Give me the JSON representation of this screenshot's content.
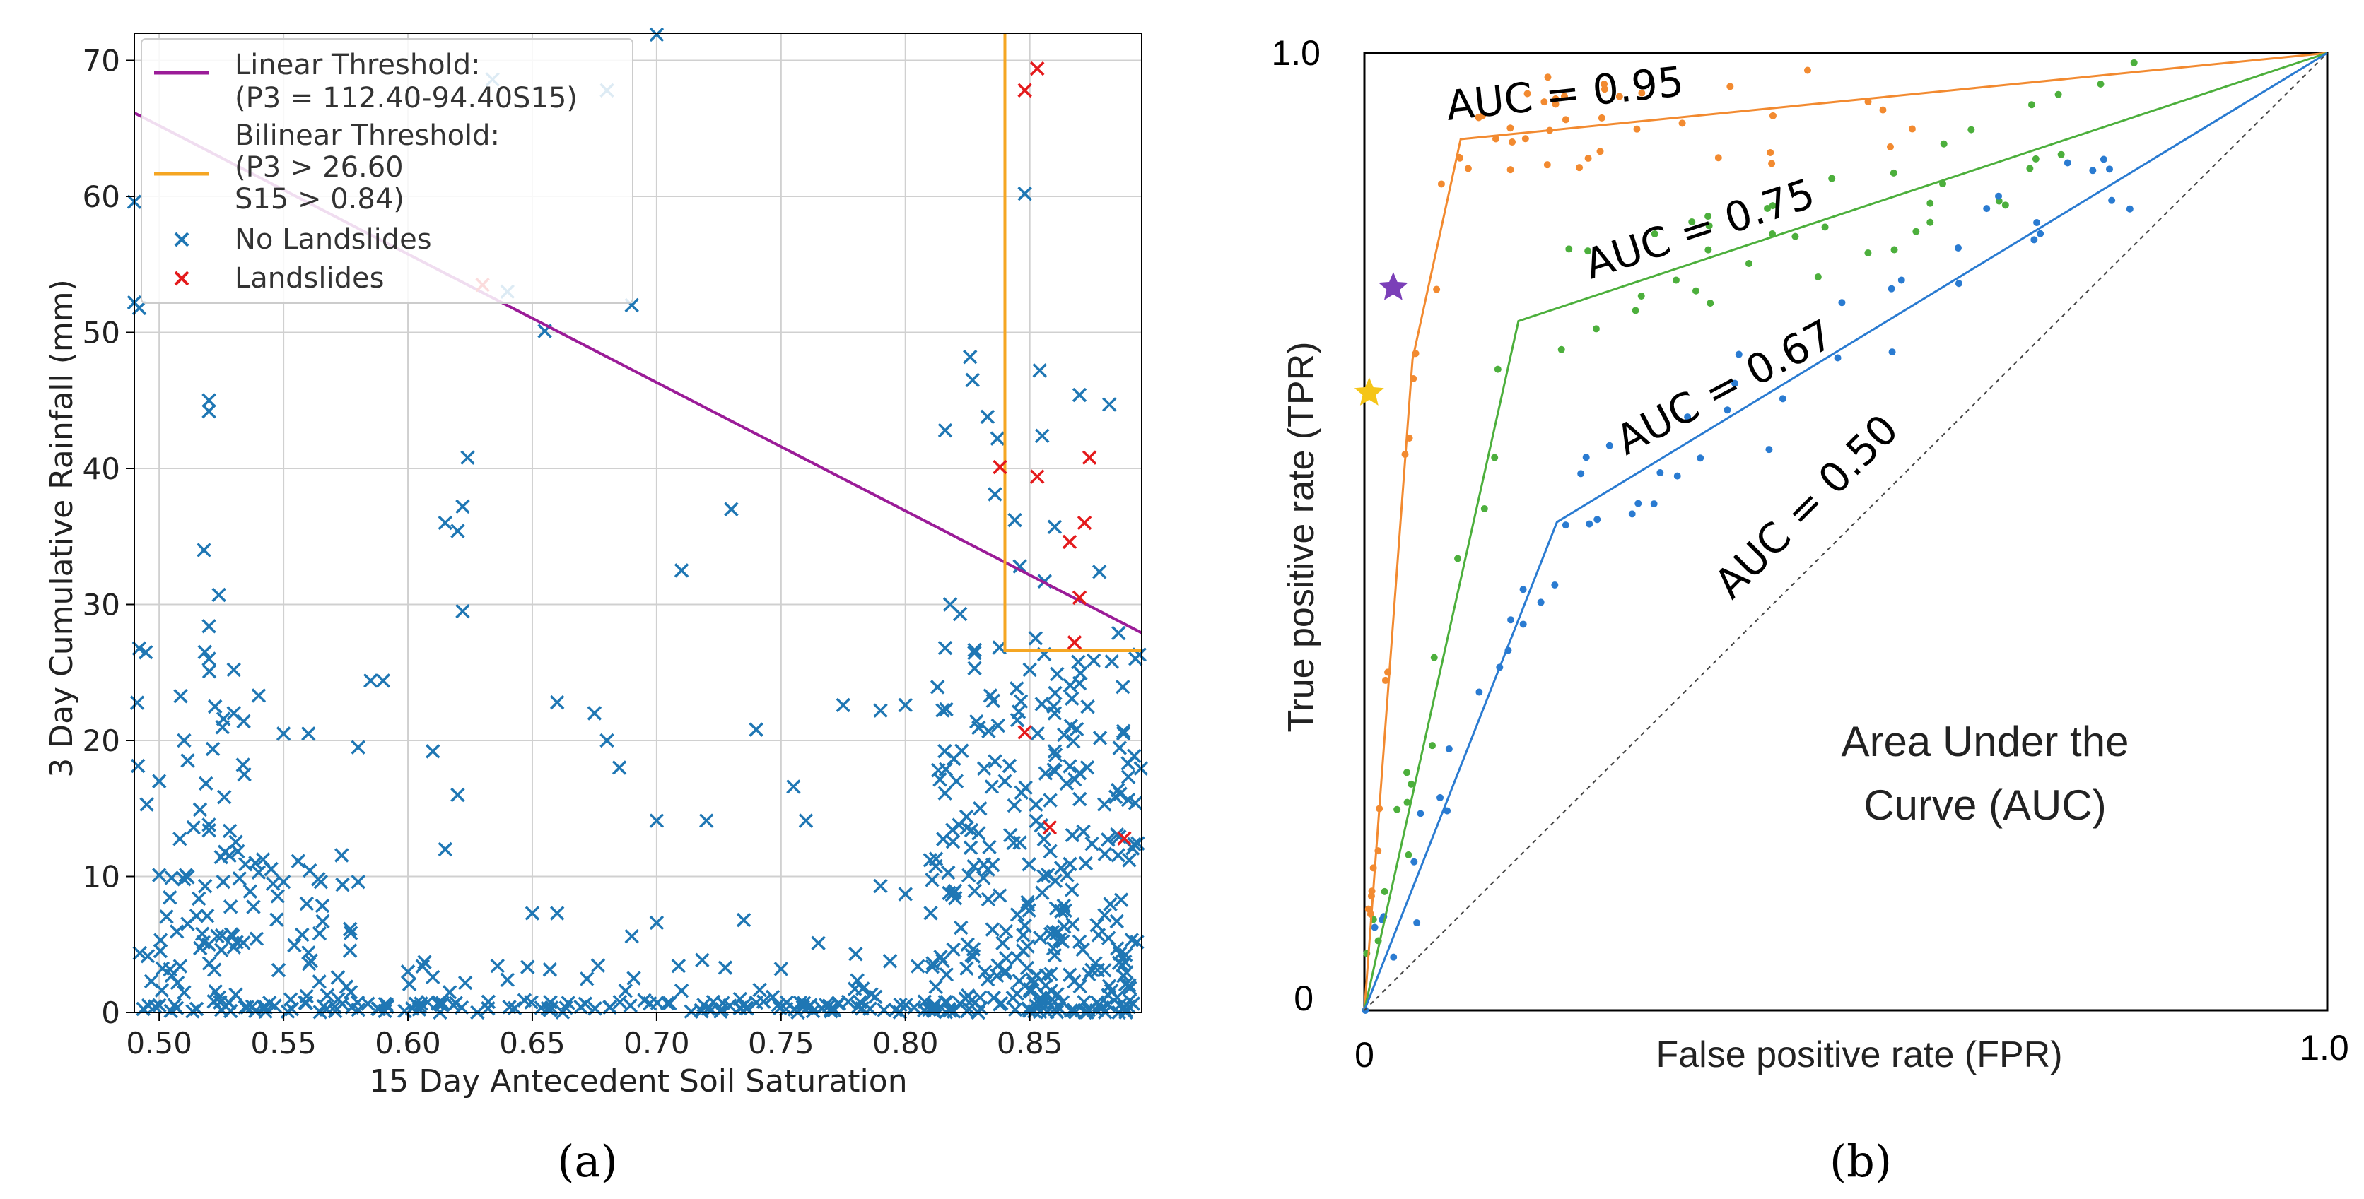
{
  "colors": {
    "linear": "#9b1c98",
    "linear_light": "#e07ad0",
    "bilinear": "#f5a623",
    "no_landslide": "#1f77b4",
    "landslide": "#e41a1c",
    "grid": "#d0d0d0",
    "roc_095": "#f28a30",
    "roc_075": "#4caf3c",
    "roc_067": "#2a7bd1",
    "star_purple": "#7b3fb8",
    "star_yellow": "#f5c518"
  },
  "caption_a": "(a)",
  "caption_b": "(b)",
  "chart_data": [
    {
      "type": "scatter",
      "title": "",
      "xlabel": "15 Day Antecedent Soil Saturation",
      "ylabel": "3 Day Cumulative Rainfall (mm)",
      "xlim": [
        0.49,
        0.895
      ],
      "ylim": [
        0,
        72
      ],
      "grid": true,
      "xticks": [
        0.5,
        0.55,
        0.6,
        0.65,
        0.7,
        0.75,
        0.8,
        0.85
      ],
      "xtick_labels": [
        "0.50",
        "0.55",
        "0.60",
        "0.65",
        "0.70",
        "0.75",
        "0.80",
        "0.85"
      ],
      "yticks": [
        0,
        10,
        20,
        30,
        40,
        50,
        60,
        70
      ],
      "ytick_labels": [
        "0",
        "10",
        "20",
        "30",
        "40",
        "50",
        "60",
        "70"
      ],
      "legend": {
        "placement": "top-left",
        "entries": [
          {
            "label": "Linear Threshold:",
            "sub": "(P3 = 112.40-94.40S15)",
            "kind": "line",
            "color_key": "linear"
          },
          {
            "label": "Bilinear Threshold:",
            "sub": "(P3 > 26.60",
            "sub2": "S15 > 0.84)",
            "kind": "line",
            "color_key": "bilinear"
          },
          {
            "label": "No Landslides",
            "kind": "marker",
            "color_key": "no_landslide"
          },
          {
            "label": "Landslides",
            "kind": "marker",
            "color_key": "landslide"
          }
        ]
      },
      "linear_threshold": {
        "intercept": 112.4,
        "slope": -94.4
      },
      "bilinear_threshold": {
        "p3": 26.6,
        "s15": 0.84
      },
      "landslides": [
        [
          0.853,
          69.4
        ],
        [
          0.848,
          67.8
        ],
        [
          0.63,
          53.5
        ],
        [
          0.838,
          40.1
        ],
        [
          0.853,
          39.4
        ],
        [
          0.874,
          40.8
        ],
        [
          0.872,
          36.0
        ],
        [
          0.866,
          34.6
        ],
        [
          0.87,
          30.5
        ],
        [
          0.868,
          27.2
        ],
        [
          0.848,
          20.6
        ],
        [
          0.858,
          13.6
        ],
        [
          0.888,
          12.8
        ]
      ],
      "no_landslides_sample": [
        [
          0.7,
          71.9
        ],
        [
          0.68,
          67.8
        ],
        [
          0.634,
          68.6
        ],
        [
          0.64,
          53.0
        ],
        [
          0.655,
          50.1
        ],
        [
          0.69,
          52.0
        ],
        [
          0.52,
          44.2
        ],
        [
          0.52,
          45.0
        ],
        [
          0.624,
          40.8
        ],
        [
          0.615,
          36.0
        ],
        [
          0.62,
          35.4
        ],
        [
          0.622,
          37.2
        ],
        [
          0.622,
          29.5
        ],
        [
          0.73,
          37.0
        ],
        [
          0.71,
          32.5
        ],
        [
          0.518,
          34.0
        ],
        [
          0.524,
          30.7
        ],
        [
          0.52,
          28.4
        ],
        [
          0.52,
          26.0
        ],
        [
          0.49,
          59.6
        ],
        [
          0.492,
          51.8
        ],
        [
          0.49,
          52.2
        ],
        [
          0.848,
          60.2
        ],
        [
          0.854,
          47.2
        ],
        [
          0.826,
          48.2
        ],
        [
          0.827,
          46.5
        ],
        [
          0.833,
          43.8
        ],
        [
          0.816,
          42.8
        ],
        [
          0.837,
          42.2
        ],
        [
          0.855,
          42.4
        ],
        [
          0.87,
          45.4
        ],
        [
          0.882,
          44.7
        ],
        [
          0.836,
          38.1
        ],
        [
          0.844,
          36.2
        ],
        [
          0.86,
          35.7
        ],
        [
          0.818,
          30.0
        ],
        [
          0.822,
          29.3
        ],
        [
          0.816,
          26.8
        ],
        [
          0.856,
          31.7
        ],
        [
          0.846,
          32.8
        ],
        [
          0.878,
          32.4
        ],
        [
          0.883,
          25.8
        ],
        [
          0.87,
          24.2
        ],
        [
          0.86,
          22.0
        ],
        [
          0.8,
          22.6
        ],
        [
          0.79,
          22.2
        ],
        [
          0.775,
          22.6
        ],
        [
          0.74,
          20.8
        ],
        [
          0.755,
          16.6
        ],
        [
          0.76,
          14.1
        ],
        [
          0.72,
          14.1
        ],
        [
          0.7,
          14.1
        ],
        [
          0.68,
          20.0
        ],
        [
          0.685,
          18.0
        ],
        [
          0.66,
          22.8
        ],
        [
          0.675,
          22.0
        ],
        [
          0.59,
          24.4
        ],
        [
          0.585,
          24.4
        ],
        [
          0.61,
          19.2
        ],
        [
          0.62,
          16.0
        ],
        [
          0.615,
          12.0
        ],
        [
          0.58,
          19.5
        ],
        [
          0.56,
          20.5
        ],
        [
          0.55,
          20.5
        ],
        [
          0.54,
          23.3
        ],
        [
          0.53,
          25.2
        ],
        [
          0.53,
          22.0
        ],
        [
          0.51,
          20.0
        ],
        [
          0.5,
          17.0
        ],
        [
          0.495,
          15.3
        ],
        [
          0.5,
          10.1
        ],
        [
          0.505,
          9.9
        ],
        [
          0.51,
          9.8
        ],
        [
          0.52,
          13.8
        ],
        [
          0.54,
          10.3
        ],
        [
          0.55,
          9.6
        ],
        [
          0.565,
          9.6
        ],
        [
          0.58,
          9.6
        ],
        [
          0.515,
          7.1
        ],
        [
          0.52,
          5.0
        ],
        [
          0.53,
          4.8
        ],
        [
          0.56,
          4.4
        ],
        [
          0.6,
          3.0
        ],
        [
          0.61,
          2.6
        ],
        [
          0.64,
          2.4
        ],
        [
          0.65,
          7.3
        ],
        [
          0.66,
          7.3
        ],
        [
          0.69,
          5.6
        ],
        [
          0.7,
          6.6
        ],
        [
          0.71,
          1.6
        ],
        [
          0.735,
          6.8
        ],
        [
          0.75,
          3.2
        ],
        [
          0.765,
          5.1
        ],
        [
          0.78,
          4.3
        ],
        [
          0.79,
          9.3
        ],
        [
          0.8,
          8.7
        ],
        [
          0.81,
          11.2
        ],
        [
          0.805,
          3.4
        ],
        [
          0.82,
          8.4
        ],
        [
          0.83,
          15.0
        ],
        [
          0.84,
          17.0
        ],
        [
          0.845,
          21.5
        ],
        [
          0.85,
          25.2
        ],
        [
          0.86,
          19.2
        ],
        [
          0.87,
          17.6
        ],
        [
          0.88,
          15.3
        ],
        [
          0.89,
          11.2
        ],
        [
          0.875,
          12.4
        ],
        [
          0.865,
          10.1
        ],
        [
          0.855,
          8.8
        ],
        [
          0.845,
          7.2
        ],
        [
          0.835,
          6.1
        ],
        [
          0.825,
          5.0
        ],
        [
          0.815,
          3.8
        ],
        [
          0.86,
          4.2
        ],
        [
          0.87,
          5.2
        ],
        [
          0.88,
          3.1
        ],
        [
          0.89,
          2.0
        ],
        [
          0.885,
          6.7
        ],
        [
          0.84,
          2.9
        ],
        [
          0.85,
          1.6
        ],
        [
          0.83,
          1.1
        ],
        [
          0.86,
          0.8
        ]
      ]
    },
    {
      "type": "line",
      "title": "",
      "xlabel": "False positive rate (FPR)",
      "ylabel": "True positive rate (TPR)",
      "xlim": [
        0,
        1
      ],
      "ylim": [
        0,
        1
      ],
      "x_tick_labels": [
        "0",
        "1.0"
      ],
      "y_tick_labels": [
        "0",
        "1.0"
      ],
      "annotation": [
        "Area Under the",
        "Curve (AUC)"
      ],
      "series": [
        {
          "name": "AUC = 0.95",
          "color_key": "roc_095",
          "x": [
            0,
            0.05,
            0.1,
            1.0
          ],
          "y": [
            0,
            0.68,
            0.91,
            1.0
          ]
        },
        {
          "name": "AUC = 0.75",
          "color_key": "roc_075",
          "x": [
            0,
            0.16,
            1.0
          ],
          "y": [
            0,
            0.72,
            1.0
          ]
        },
        {
          "name": "AUC = 0.67",
          "color_key": "roc_067",
          "x": [
            0,
            0.2,
            1.0
          ],
          "y": [
            0,
            0.51,
            1.0
          ]
        },
        {
          "name": "AUC = 0.50",
          "color_key": "baseline",
          "x": [
            0,
            1.0
          ],
          "y": [
            0,
            1.0
          ],
          "dashed": true
        }
      ],
      "markers": [
        {
          "name": "purple-star",
          "x": 0.03,
          "y": 0.755,
          "color_key": "star_purple"
        },
        {
          "name": "yellow-star",
          "x": 0.005,
          "y": 0.645,
          "color_key": "star_yellow"
        }
      ]
    }
  ]
}
